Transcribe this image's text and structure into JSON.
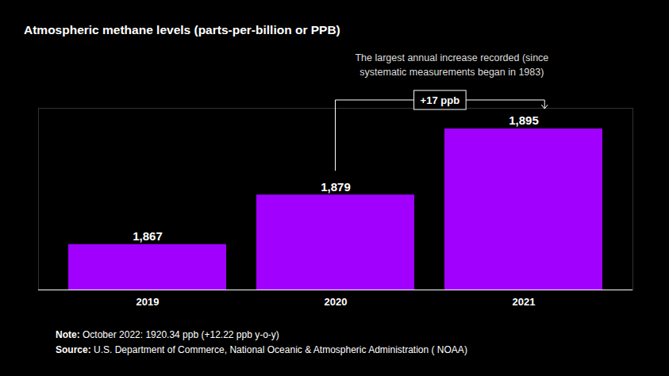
{
  "chart_data": {
    "type": "bar",
    "title": "Atmospheric methane levels (parts-per-billion or PPB)",
    "categories": [
      "2019",
      "2020",
      "2021"
    ],
    "values": [
      1867,
      1879,
      1895
    ],
    "value_labels": [
      "1,867",
      "1,879",
      "1,895"
    ],
    "color": "#a100ff",
    "ylim": [
      1856,
      1900
    ],
    "grid": false,
    "data_labels": true,
    "tick_labels": "x",
    "annotation": [
      "The largest annual increase recorded (since",
      "systematic measurements began in 1983)"
    ],
    "annotation_label": "+17 ppb",
    "note_label": "Note:",
    "note": "October 2022: 1920.34 ppb (+12.22 ppb y-o-y)",
    "source_label": "Source:",
    "source": "U.S. Department of Commerce, National Oceanic & Atmospheric Administration ( NOAA)"
  }
}
